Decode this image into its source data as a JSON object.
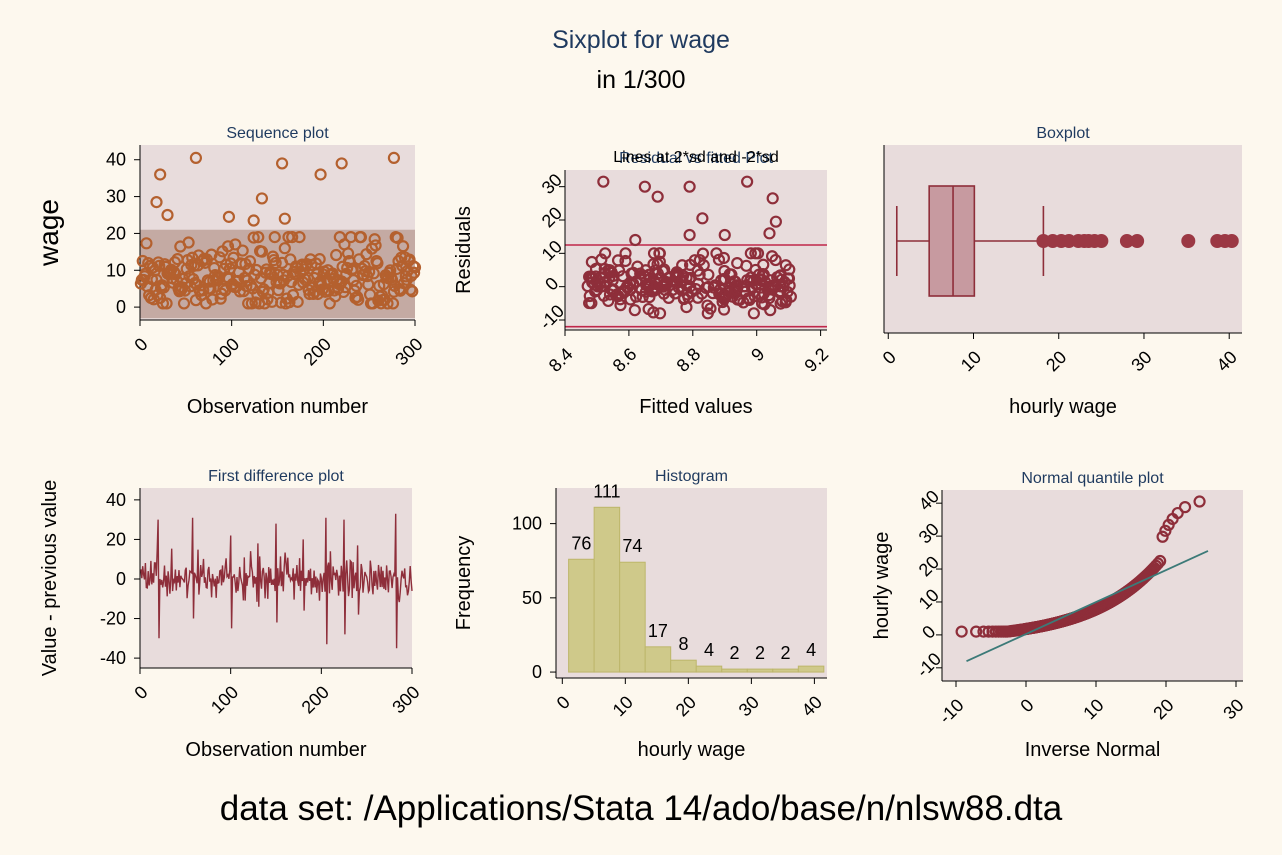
{
  "title": "Sixplot for wage",
  "subtitle": "in 1/300",
  "footer": "data set: /Applications/Stata 14/ado/base/n/nlsw88.dta",
  "colors": {
    "background": "#fdf8ee",
    "plot_bg": "#e8dcdc",
    "title": "#1f3a5f",
    "orange": "#b4602e",
    "crimson": "#8e2e3a",
    "red_line": "#c0264a",
    "box_fill": "#c79aa0",
    "bar_fill": "#cfc98a",
    "bar_edge": "#bdb66a",
    "teal": "#3c7a78",
    "band": "#b89a90"
  },
  "chart_data": [
    {
      "id": "sequence",
      "type": "scatter",
      "title": "Sequence plot",
      "xlabel": "Observation number",
      "ylabel": "wage",
      "xticks": [
        "0",
        "100",
        "200",
        "300"
      ],
      "yticks": [
        "0",
        "10",
        "20",
        "30",
        "40"
      ],
      "xlim": [
        0,
        300
      ],
      "ylim": [
        -3.5,
        44
      ],
      "band": [
        -3,
        21
      ],
      "highlighted_points": [
        {
          "x": 22,
          "y": 36
        },
        {
          "x": 61,
          "y": 40.5
        },
        {
          "x": 155,
          "y": 39
        },
        {
          "x": 220,
          "y": 39
        },
        {
          "x": 277,
          "y": 40.5
        },
        {
          "x": 197,
          "y": 36
        },
        {
          "x": 18,
          "y": 28.5
        },
        {
          "x": 133,
          "y": 29.5
        },
        {
          "x": 30,
          "y": 25
        },
        {
          "x": 97,
          "y": 24.5
        },
        {
          "x": 124,
          "y": 23.5
        },
        {
          "x": 158,
          "y": 24
        }
      ]
    },
    {
      "id": "residual",
      "type": "scatter",
      "title": "Residual vs fitted Plot",
      "subtitle": "Lines at 2*sd and -2*sd",
      "xlabel": "Fitted values",
      "ylabel": "Residuals",
      "xticks": [
        "8.4",
        "8.6",
        "8.8",
        "9",
        "9.2"
      ],
      "yticks": [
        "-10",
        "0",
        "10",
        "20",
        "30"
      ],
      "xlim": [
        8.4,
        9.22
      ],
      "ylim": [
        -13,
        35
      ],
      "hlines": [
        12.5,
        -12
      ],
      "highlighted_points": [
        {
          "x": 8.52,
          "y": 31.5
        },
        {
          "x": 8.65,
          "y": 30
        },
        {
          "x": 8.79,
          "y": 30
        },
        {
          "x": 8.97,
          "y": 31.5
        },
        {
          "x": 8.69,
          "y": 27
        },
        {
          "x": 9.05,
          "y": 26.5
        },
        {
          "x": 8.83,
          "y": 20.5
        },
        {
          "x": 9.06,
          "y": 19.5
        },
        {
          "x": 8.79,
          "y": 15.5
        },
        {
          "x": 8.9,
          "y": 15.5
        },
        {
          "x": 9.04,
          "y": 16
        },
        {
          "x": 8.62,
          "y": 14
        }
      ]
    },
    {
      "id": "boxplot",
      "type": "boxplot",
      "title": "Boxplot",
      "xlabel": "hourly wage",
      "xticks": [
        "0",
        "10",
        "20",
        "30",
        "40"
      ],
      "xlim": [
        -0.5,
        41.5
      ],
      "stats": {
        "min": 1,
        "q1": 4.8,
        "median": 7.6,
        "q3": 10.1,
        "whisker_high": 18.2
      },
      "outliers": [
        18.2,
        19.3,
        20.3,
        21.2,
        22.3,
        23,
        23.5,
        24.2,
        25,
        28,
        29.2,
        35.2,
        38.6,
        39.5,
        40.3
      ]
    },
    {
      "id": "first_difference",
      "type": "line",
      "title": "First difference plot",
      "xlabel": "Observation number",
      "ylabel": "Value - previous value",
      "xticks": [
        "0",
        "100",
        "200",
        "300"
      ],
      "yticks": [
        "-40",
        "-20",
        "0",
        "20",
        "40"
      ],
      "xlim": [
        0,
        300
      ],
      "ylim": [
        -45,
        46
      ]
    },
    {
      "id": "histogram",
      "type": "bar",
      "title": "Histogram",
      "xlabel": "hourly wage",
      "ylabel": "Frequency",
      "xticks": [
        "0",
        "10",
        "20",
        "30",
        "40"
      ],
      "yticks": [
        "0",
        "50",
        "100"
      ],
      "xlim": [
        -1,
        42
      ],
      "ylim": [
        -4,
        124
      ],
      "bin_edges": [
        1,
        5.05,
        9.1,
        13.15,
        17.2,
        21.25,
        25.3,
        29.35,
        33.4,
        37.45,
        41.5
      ],
      "values": [
        76,
        111,
        74,
        17,
        8,
        4,
        2,
        2,
        2,
        4
      ],
      "labels": [
        "76",
        "111",
        "74",
        "17",
        "8",
        "4",
        "2",
        "2",
        "2",
        "4"
      ]
    },
    {
      "id": "normal_quantile",
      "type": "scatter",
      "title": "Normal quantile plot",
      "xlabel": "Inverse Normal",
      "ylabel": "hourly wage",
      "xticks": [
        "-10",
        "0",
        "10",
        "20",
        "30"
      ],
      "yticks": [
        "-10",
        "0",
        "10",
        "20",
        "30",
        "40"
      ],
      "xlim": [
        -12,
        31
      ],
      "ylim": [
        -14,
        44
      ],
      "reference_line": [
        [
          -8.5,
          -8
        ],
        [
          26,
          25.5
        ]
      ]
    }
  ]
}
